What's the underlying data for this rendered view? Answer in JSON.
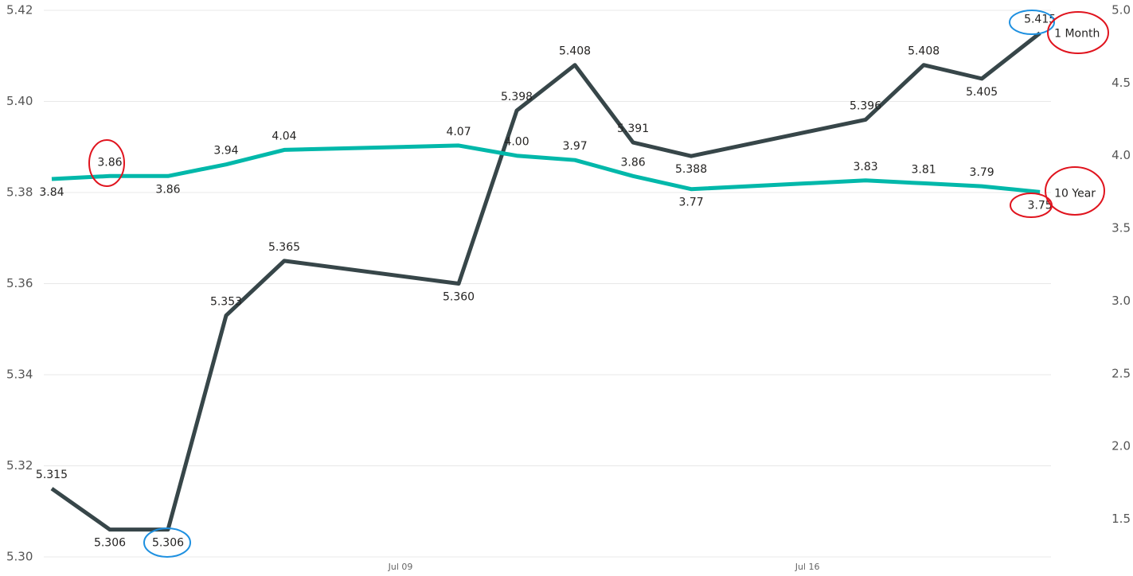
{
  "chart_data": {
    "type": "line",
    "x": [
      3,
      4,
      5,
      6,
      7,
      10,
      11,
      12,
      13,
      14,
      17,
      18,
      19,
      20
    ],
    "xlim": [
      2.11,
      20.19
    ],
    "xticks": [
      {
        "value": 9,
        "label": "Jul 09"
      },
      {
        "value": 16,
        "label": "Jul 16"
      }
    ],
    "ylim": [
      5.3,
      5.42
    ],
    "yticks": [
      {
        "value": 5.3,
        "label": "5.30"
      },
      5.32,
      5.34,
      5.36,
      5.38,
      {
        "value": 5.4,
        "label": "5.40"
      },
      5.42
    ],
    "y2lim": [
      1.24,
      5.0
    ],
    "y2ticks": [
      1.5,
      {
        "value": 2.0,
        "label": "2.0"
      },
      2.5,
      {
        "value": 3.0,
        "label": "3.0"
      },
      3.5,
      {
        "value": 4.0,
        "label": "4.0"
      },
      4.5,
      {
        "value": 5.0,
        "label": "5.0"
      }
    ],
    "grid": true,
    "series": [
      {
        "name": "1 Month",
        "color": "#374649",
        "values": [
          5.315,
          5.306,
          5.306,
          5.353,
          5.365,
          5.36,
          5.398,
          5.408,
          5.391,
          5.388,
          5.396,
          5.408,
          5.405,
          5.415
        ],
        "value_labels": [
          "5.315",
          "5.306",
          "5.306",
          "5.353",
          "5.365",
          "5.360",
          "5.398",
          "5.408",
          "5.391",
          "5.388",
          "5.396",
          "5.408",
          "5.405",
          "5.415"
        ]
      },
      {
        "name": "10 Year",
        "color": "#01b8aa",
        "axis": "y2",
        "values": [
          3.84,
          3.86,
          3.86,
          3.94,
          4.04,
          4.07,
          4.0,
          3.97,
          3.86,
          3.77,
          3.83,
          3.81,
          3.79,
          3.75
        ],
        "value_labels": [
          "3.84",
          "3.86",
          "3.86",
          "3.94",
          "4.04",
          "4.07",
          "4.00",
          "3.97",
          "3.86",
          "3.77",
          "3.83",
          "3.81",
          "3.79",
          "3.75"
        ]
      }
    ]
  }
}
